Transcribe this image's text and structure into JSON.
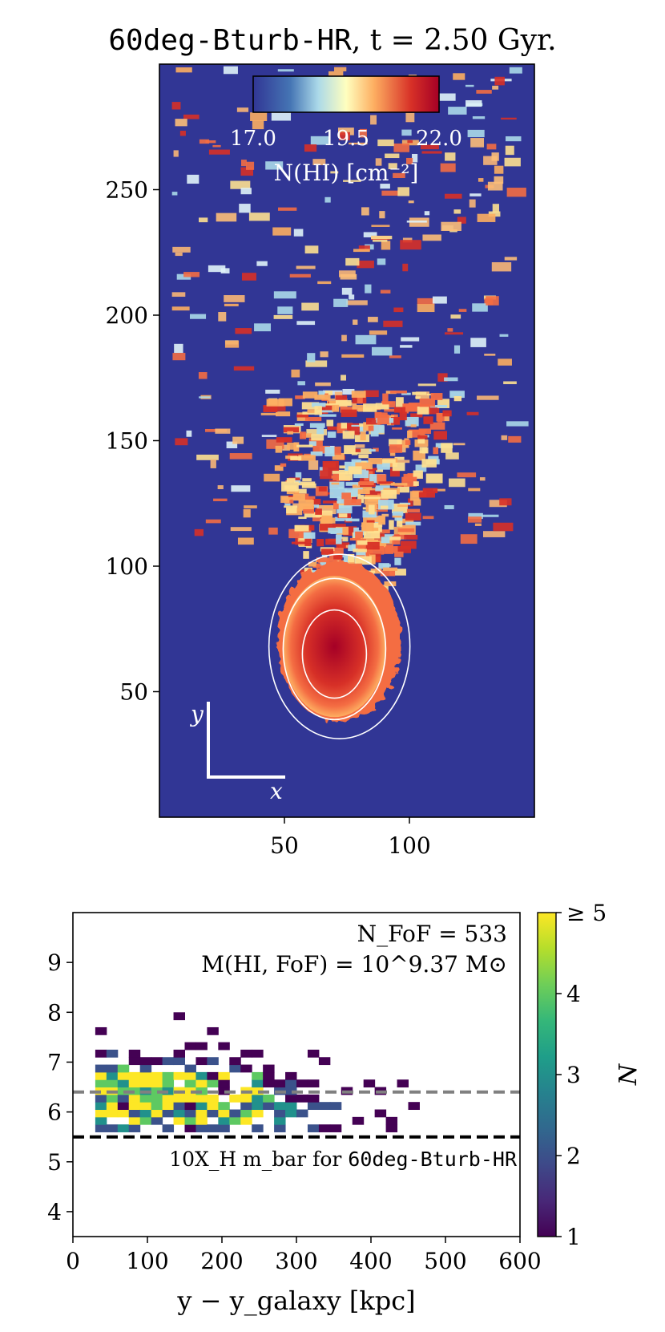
{
  "chart_data": [
    {
      "type": "heatmap",
      "title_mono": "60deg-Bturb-HR",
      "title_rest": ", t = 2.50 Gyr.",
      "xticks": [
        50,
        100
      ],
      "yticks": [
        50,
        100,
        150,
        200,
        250
      ],
      "xlim": [
        0,
        150
      ],
      "ylim": [
        0,
        300
      ],
      "colorbar": {
        "ticks": [
          "17.0",
          "19.5",
          "22.0"
        ],
        "label": "N(HI) [cm⁻²]",
        "range": [
          17.0,
          22.0
        ],
        "colormap": "RdYlBu_r"
      },
      "axis_indicator": {
        "x": "x",
        "y": "y"
      },
      "colors": {
        "background": "#313695",
        "low": "#a5cfe3",
        "mid": "#f9d283",
        "high": "#c62b27",
        "contour": "#ffffff"
      }
    },
    {
      "type": "heatmap",
      "xlabel": "y − y_galaxy [kpc]",
      "xticks": [
        0,
        100,
        200,
        300,
        400,
        500,
        600
      ],
      "yticks": [
        4,
        5,
        6,
        7,
        8,
        9
      ],
      "xlim": [
        0,
        600
      ],
      "ylim": [
        3.5,
        10
      ],
      "annotation_n": "N_FoF = 533",
      "annotation_m": "M(HI, FoF) = 10^9.37 M⊙",
      "hline_black": {
        "y": 5.5,
        "label_prefix": "10X_H m_bar for ",
        "label_mono": "60deg-Bturb-HR"
      },
      "hline_gray": {
        "y": 6.4
      },
      "colorbar": {
        "label": "N",
        "ticks": [
          "1",
          "2",
          "3",
          "4",
          "≥ 5"
        ],
        "range": [
          1,
          5
        ],
        "colormap": "viridis"
      }
    }
  ]
}
